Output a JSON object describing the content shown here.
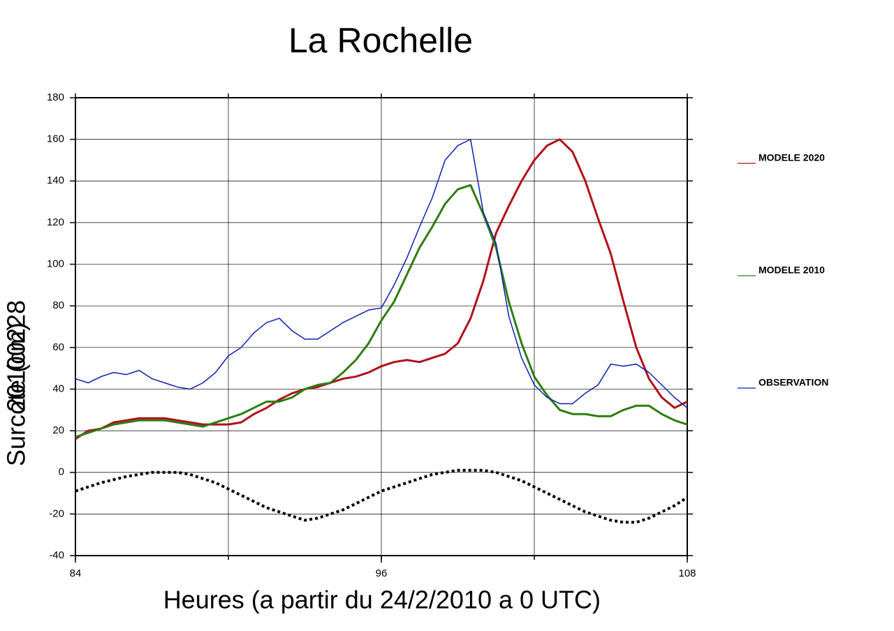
{
  "chart_data": {
    "type": "line",
    "title": "La Rochelle",
    "ylabel": "Surcote (cm)",
    "date": "20100228",
    "xlabel": "Heures (a partir du 24/2/2010 a 0 UTC)",
    "x": [
      84,
      84.5,
      85,
      85.5,
      86,
      86.5,
      87,
      87.5,
      88,
      88.5,
      89,
      89.5,
      90,
      90.5,
      91,
      91.5,
      92,
      92.5,
      93,
      93.5,
      94,
      94.5,
      95,
      95.5,
      96,
      96.5,
      97,
      97.5,
      98,
      98.5,
      99,
      99.5,
      100,
      100.5,
      101,
      101.5,
      102,
      102.5,
      103,
      103.5,
      104,
      104.5,
      105,
      105.5,
      106,
      106.5,
      107,
      107.5,
      108
    ],
    "series": [
      {
        "name": "MODELE 2020",
        "color": "#b0101a",
        "width": 3,
        "values": [
          16,
          20,
          21,
          24,
          25,
          26,
          26,
          26,
          25,
          24,
          23,
          23,
          23,
          24,
          28,
          31,
          35,
          38,
          40,
          41,
          43,
          45,
          46,
          48,
          51,
          53,
          54,
          53,
          55,
          57,
          62,
          74,
          92,
          115,
          128,
          140,
          150,
          157,
          160,
          154,
          140,
          122,
          105,
          82,
          60,
          45,
          36,
          31,
          34
        ]
      },
      {
        "name": "MODELE 2010",
        "color": "#2e7d10",
        "width": 3,
        "values": [
          17,
          19,
          21,
          23,
          24,
          25,
          25,
          25,
          24,
          23,
          22,
          24,
          26,
          28,
          31,
          34,
          34,
          36,
          40,
          42,
          43,
          48,
          54,
          62,
          73,
          82,
          95,
          108,
          118,
          129,
          136,
          138,
          124,
          108,
          82,
          62,
          46,
          37,
          30,
          28,
          28,
          27,
          27,
          30,
          32,
          32,
          28,
          25,
          23
        ]
      },
      {
        "name": "OBSERVATION",
        "color": "#0a1fb0",
        "width": 1.5,
        "values": [
          45,
          43,
          46,
          48,
          47,
          49,
          45,
          43,
          41,
          40,
          43,
          48,
          56,
          60,
          67,
          72,
          74,
          68,
          64,
          64,
          68,
          72,
          75,
          78,
          79,
          90,
          103,
          118,
          132,
          150,
          157,
          160,
          125,
          110,
          75,
          55,
          42,
          36,
          33,
          33,
          38,
          42,
          52,
          51,
          52,
          48,
          42,
          36,
          31
        ]
      },
      {
        "color": "#000000",
        "width": 4,
        "dashed": true,
        "values": [
          -9,
          -7,
          -5,
          -3.5,
          -2,
          -1,
          0,
          0,
          0,
          -1,
          -3,
          -5,
          -8,
          -11,
          -14,
          -17,
          -19,
          -21,
          -23,
          -22,
          -20,
          -18,
          -15,
          -12,
          -9,
          -7,
          -5,
          -3,
          -1,
          0,
          1,
          1,
          1,
          0,
          -2,
          -4,
          -7,
          -10,
          -13,
          -16,
          -19,
          -21,
          -23,
          -24,
          -24,
          -22,
          -19,
          -16,
          -12
        ]
      }
    ],
    "xlim": [
      84,
      108
    ],
    "xticks": [
      84,
      96,
      108
    ],
    "xgrid": [
      84,
      90,
      96,
      102,
      108
    ],
    "ylim": [
      -40,
      180
    ],
    "yticks": [
      -40,
      -20,
      0,
      20,
      40,
      60,
      80,
      100,
      120,
      140,
      160,
      180
    ],
    "grid": true
  }
}
